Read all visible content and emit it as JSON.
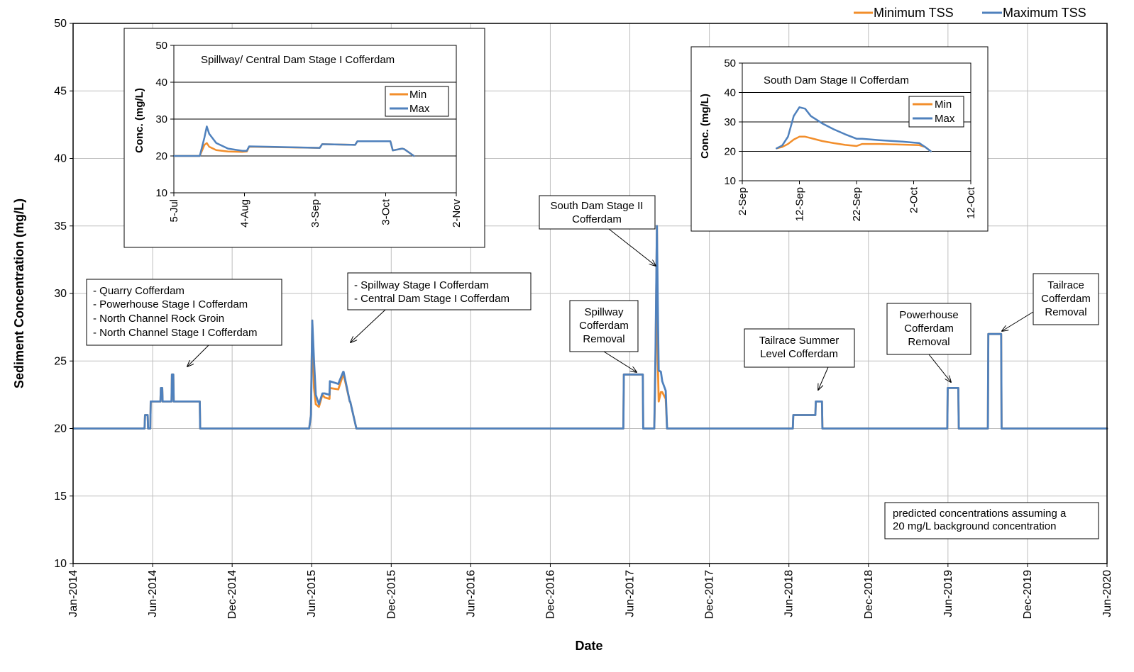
{
  "colors": {
    "min": "#F28E2B",
    "max": "#4F81BD",
    "grid": "#bfbfbf"
  },
  "legend": {
    "min_label": "Minimum TSS",
    "max_label": "Maximum TSS"
  },
  "main": {
    "xlabel": "Date",
    "ylabel": "Sediment Concentration (mg/L)",
    "note_line1": "predicted concentrations assuming a",
    "note_line2": "20 mg/L background concentration"
  },
  "annotations": {
    "a1": {
      "l1": "- Quarry Cofferdam",
      "l2": "- Powerhouse Stage I Cofferdam",
      "l3": "- North Channel Rock Groin",
      "l4": "- North Channel Stage I Cofferdam"
    },
    "a2": {
      "l1": "- Spillway Stage I Cofferdam",
      "l2": "- Central Dam Stage I Cofferdam"
    },
    "a3": {
      "l1": "South Dam Stage II",
      "l2": "Cofferdam"
    },
    "a4": {
      "l1": "Spillway",
      "l2": "Cofferdam",
      "l3": "Removal"
    },
    "a5": {
      "l1": "Tailrace Summer",
      "l2": "Level Cofferdam"
    },
    "a6": {
      "l1": "Powerhouse",
      "l2": "Cofferdam",
      "l3": "Removal"
    },
    "a7": {
      "l1": "Tailrace",
      "l2": "Cofferdam",
      "l3": "Removal"
    }
  },
  "chart_data": [
    {
      "type": "line",
      "title": "",
      "xlabel": "Date",
      "ylabel": "Sediment Concentration (mg/L)",
      "ylim": [
        10,
        50
      ],
      "yticks": [
        "10",
        "15",
        "20",
        "25",
        "30",
        "35",
        "40",
        "45",
        "50"
      ],
      "xlim": [
        "2014-01",
        "2020-06"
      ],
      "xticks": [
        "Jan-2014",
        "Jun-2014",
        "Dec-2014",
        "Jun-2015",
        "Dec-2015",
        "Jun-2016",
        "Dec-2016",
        "Jun-2017",
        "Dec-2017",
        "Jun-2018",
        "Dec-2018",
        "Jun-2019",
        "Dec-2019",
        "Jun-2020"
      ],
      "grid": true,
      "legend": "top-right",
      "series": [
        {
          "name": "Minimum TSS",
          "x": [
            "2014-01",
            "2014-06-12",
            "2014-06-13",
            "2014-06-19",
            "2014-06-20",
            "2014-06-25",
            "2014-06-26",
            "2014-07-18",
            "2014-07-19",
            "2014-07-22",
            "2014-07-23",
            "2014-08-12",
            "2014-08-13",
            "2014-08-16",
            "2014-08-17",
            "2014-10-15",
            "2014-10-16",
            "2015-06-20",
            "2015-06-24",
            "2015-06-27",
            "2015-07-01",
            "2015-07-05",
            "2015-07-12",
            "2015-07-20",
            "2015-07-25",
            "2015-08-05",
            "2015-08-06",
            "2015-08-25",
            "2015-09-05",
            "2015-09-06",
            "2015-09-20",
            "2015-09-21",
            "2015-10-05",
            "2015-10-06",
            "2015-10-10",
            "2015-10-11",
            "2015-10-15",
            "2016-12-31",
            "2017-06-01",
            "2017-06-02",
            "2017-07-15",
            "2017-07-16",
            "2017-08-10",
            "2017-08-13",
            "2017-08-16",
            "2017-08-18",
            "2017-08-20",
            "2017-08-25",
            "2017-08-28",
            "2017-09-05",
            "2017-09-08",
            "2017-09-10",
            "2017-09-12",
            "2017-09-16",
            "2018-06-20",
            "2018-06-21",
            "2018-08-10",
            "2018-08-11",
            "2018-08-25",
            "2018-08-26",
            "2019-06-05",
            "2019-06-06",
            "2019-06-30",
            "2019-07-01",
            "2019-09-05",
            "2019-09-06",
            "2019-10-05",
            "2019-10-06",
            "2020-06"
          ],
          "values": [
            20,
            20,
            21,
            21,
            20,
            20,
            22,
            22,
            23,
            23,
            22,
            22,
            24,
            24,
            22,
            22,
            20,
            20,
            21,
            28,
            23,
            21.8,
            21.6,
            22.5,
            22.3,
            22.2,
            23,
            22.9,
            24,
            24,
            22,
            22,
            20,
            20,
            20,
            20,
            20,
            20,
            20,
            24,
            24,
            20,
            20,
            25,
            35,
            25,
            22,
            22.7,
            22.7,
            22.2,
            20,
            20,
            20,
            20,
            20,
            21,
            21,
            22,
            22,
            20,
            20,
            23,
            23,
            20,
            20,
            27,
            27,
            20,
            20
          ]
        },
        {
          "name": "Maximum TSS",
          "x": [
            "2014-01",
            "2014-06-12",
            "2014-06-13",
            "2014-06-19",
            "2014-06-20",
            "2014-06-25",
            "2014-06-26",
            "2014-07-18",
            "2014-07-19",
            "2014-07-22",
            "2014-07-23",
            "2014-08-12",
            "2014-08-13",
            "2014-08-16",
            "2014-08-17",
            "2014-10-15",
            "2014-10-16",
            "2015-06-20",
            "2015-06-24",
            "2015-06-27",
            "2015-07-01",
            "2015-07-05",
            "2015-07-12",
            "2015-07-20",
            "2015-07-25",
            "2015-08-05",
            "2015-08-06",
            "2015-08-25",
            "2015-09-05",
            "2015-09-06",
            "2015-09-20",
            "2015-09-21",
            "2015-10-05",
            "2015-10-06",
            "2015-10-10",
            "2015-10-11",
            "2015-10-15",
            "2016-12-31",
            "2017-06-01",
            "2017-06-02",
            "2017-07-15",
            "2017-07-16",
            "2017-08-10",
            "2017-08-13",
            "2017-08-16",
            "2017-08-18",
            "2017-08-20",
            "2017-08-25",
            "2017-08-28",
            "2017-09-05",
            "2017-09-08",
            "2017-09-10",
            "2017-09-12",
            "2017-09-16",
            "2018-06-20",
            "2018-06-21",
            "2018-08-10",
            "2018-08-11",
            "2018-08-25",
            "2018-08-26",
            "2019-06-05",
            "2019-06-06",
            "2019-06-30",
            "2019-07-01",
            "2019-09-05",
            "2019-09-06",
            "2019-10-05",
            "2019-10-06",
            "2020-06"
          ],
          "values": [
            20,
            20,
            21,
            21,
            20,
            20,
            22,
            22,
            23,
            23,
            22,
            22,
            24,
            24,
            22,
            22,
            20,
            20,
            21,
            28,
            25,
            22.5,
            21.8,
            22.6,
            22.6,
            22.5,
            23.5,
            23.3,
            24.2,
            24.2,
            22,
            22,
            20,
            20,
            20,
            20,
            20,
            20,
            20,
            24,
            24,
            20,
            20,
            26,
            35,
            29,
            24.3,
            24.2,
            23.5,
            22.8,
            20,
            20,
            20,
            20,
            20,
            21,
            21,
            22,
            22,
            20,
            20,
            23,
            23,
            20,
            20,
            27,
            27,
            20,
            20
          ]
        }
      ]
    },
    {
      "type": "line",
      "title": "Spillway/ Central Dam Stage I   Cofferdam",
      "xlabel": "",
      "ylabel": "Conc.  (mg/L)",
      "ylim": [
        10,
        50
      ],
      "yticks": [
        "10",
        "20",
        "30",
        "40",
        "50"
      ],
      "xlim": [
        "2015-07-05",
        "2015-11-02"
      ],
      "xticks": [
        "5-Jul",
        "4-Aug",
        "3-Sep",
        "3-Oct",
        "2-Nov"
      ],
      "grid": true,
      "legend": "top-right",
      "series": [
        {
          "name": "Min",
          "x": [
            "2015-07-05",
            "2015-07-16",
            "2015-07-18",
            "2015-07-19",
            "2015-07-20",
            "2015-07-23",
            "2015-07-28",
            "2015-08-03",
            "2015-08-05",
            "2015-08-06",
            "2015-09-05",
            "2015-09-06",
            "2015-09-20",
            "2015-09-21",
            "2015-10-05",
            "2015-10-06",
            "2015-10-10",
            "2015-10-11",
            "2015-10-15"
          ],
          "values": [
            20,
            20,
            23,
            23.5,
            22.5,
            21.6,
            21.2,
            21.1,
            21.2,
            22.5,
            22.2,
            23.2,
            23,
            24,
            24,
            21.5,
            22,
            21.8,
            20
          ]
        },
        {
          "name": "Max",
          "x": [
            "2015-07-05",
            "2015-07-16",
            "2015-07-18",
            "2015-07-19",
            "2015-07-20",
            "2015-07-23",
            "2015-07-28",
            "2015-08-03",
            "2015-08-05",
            "2015-08-06",
            "2015-09-05",
            "2015-09-06",
            "2015-09-20",
            "2015-09-21",
            "2015-10-05",
            "2015-10-06",
            "2015-10-10",
            "2015-10-11",
            "2015-10-15"
          ],
          "values": [
            20,
            20,
            25,
            28,
            26,
            23.5,
            22,
            21.4,
            21.4,
            22.6,
            22.2,
            23.2,
            23,
            24,
            24,
            21.5,
            22,
            21.8,
            20
          ]
        }
      ]
    },
    {
      "type": "line",
      "title": "South Dam Stage II Cofferdam",
      "xlabel": "",
      "ylabel": "Conc.  (mg/L)",
      "ylim": [
        10,
        50
      ],
      "yticks": [
        "10",
        "20",
        "30",
        "40",
        "50"
      ],
      "xlim": [
        "2017-09-02",
        "2017-10-12"
      ],
      "xticks": [
        "2-Sep",
        "12-Sep",
        "22-Sep",
        "2-Oct",
        "12-Oct"
      ],
      "grid": true,
      "legend": "top-right",
      "series": [
        {
          "name": "Min",
          "x": [
            "2017-09-08",
            "2017-09-09",
            "2017-09-10",
            "2017-09-11",
            "2017-09-12",
            "2017-09-13",
            "2017-09-14",
            "2017-09-16",
            "2017-09-18",
            "2017-09-20",
            "2017-09-22",
            "2017-09-23",
            "2017-09-26",
            "2017-09-30",
            "2017-10-03",
            "2017-10-04",
            "2017-10-05"
          ],
          "values": [
            21,
            21.5,
            22.5,
            24,
            25,
            25,
            24.5,
            23.5,
            22.8,
            22.2,
            21.8,
            22.5,
            22.5,
            22.3,
            22.1,
            21.5,
            20
          ]
        },
        {
          "name": "Max",
          "x": [
            "2017-09-08",
            "2017-09-09",
            "2017-09-10",
            "2017-09-11",
            "2017-09-12",
            "2017-09-13",
            "2017-09-14",
            "2017-09-16",
            "2017-09-18",
            "2017-09-20",
            "2017-09-22",
            "2017-09-23",
            "2017-09-26",
            "2017-09-30",
            "2017-10-03",
            "2017-10-04",
            "2017-10-05"
          ],
          "values": [
            21,
            22,
            25,
            32,
            35,
            34.5,
            32,
            29.5,
            27.5,
            25.8,
            24.3,
            24.3,
            23.8,
            23.3,
            22.8,
            21.5,
            20
          ]
        }
      ]
    }
  ]
}
